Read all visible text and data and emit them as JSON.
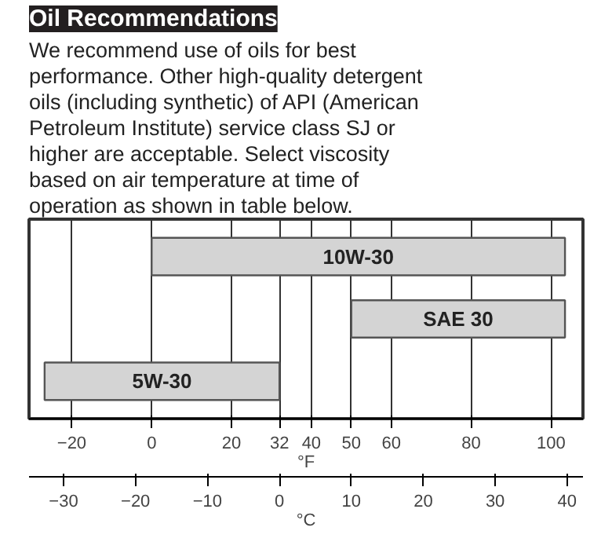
{
  "chart_data": {
    "type": "bar",
    "orientation": "horizontal",
    "title": "Oil Recommendations",
    "subtitle": "We recommend use of oils for best performance. Other high-quality detergent oils (including synthetic) of API (American Petroleum Institute) service class SJ or higher are acceptable. Select viscosity based on air temperature at time of operation as shown in table below.",
    "categories": [
      "10W-30",
      "SAE 30",
      "5W-30"
    ],
    "base": [
      0,
      50,
      32
    ],
    "values": [
      103.5,
      53.5,
      -58.8
    ],
    "color": "#d4d4d4",
    "xlabel": "°F",
    "x2label": "°C",
    "xlim": [
      -30.7,
      108
    ],
    "xticks": [
      -20,
      0,
      20,
      32,
      40,
      50,
      60,
      80,
      100
    ],
    "x2lim": [
      -34.8,
      42.2
    ],
    "x2ticks": [
      -30,
      -20,
      -10,
      0,
      10,
      20,
      30,
      40
    ],
    "grid": "x",
    "tick_labels": "x"
  }
}
